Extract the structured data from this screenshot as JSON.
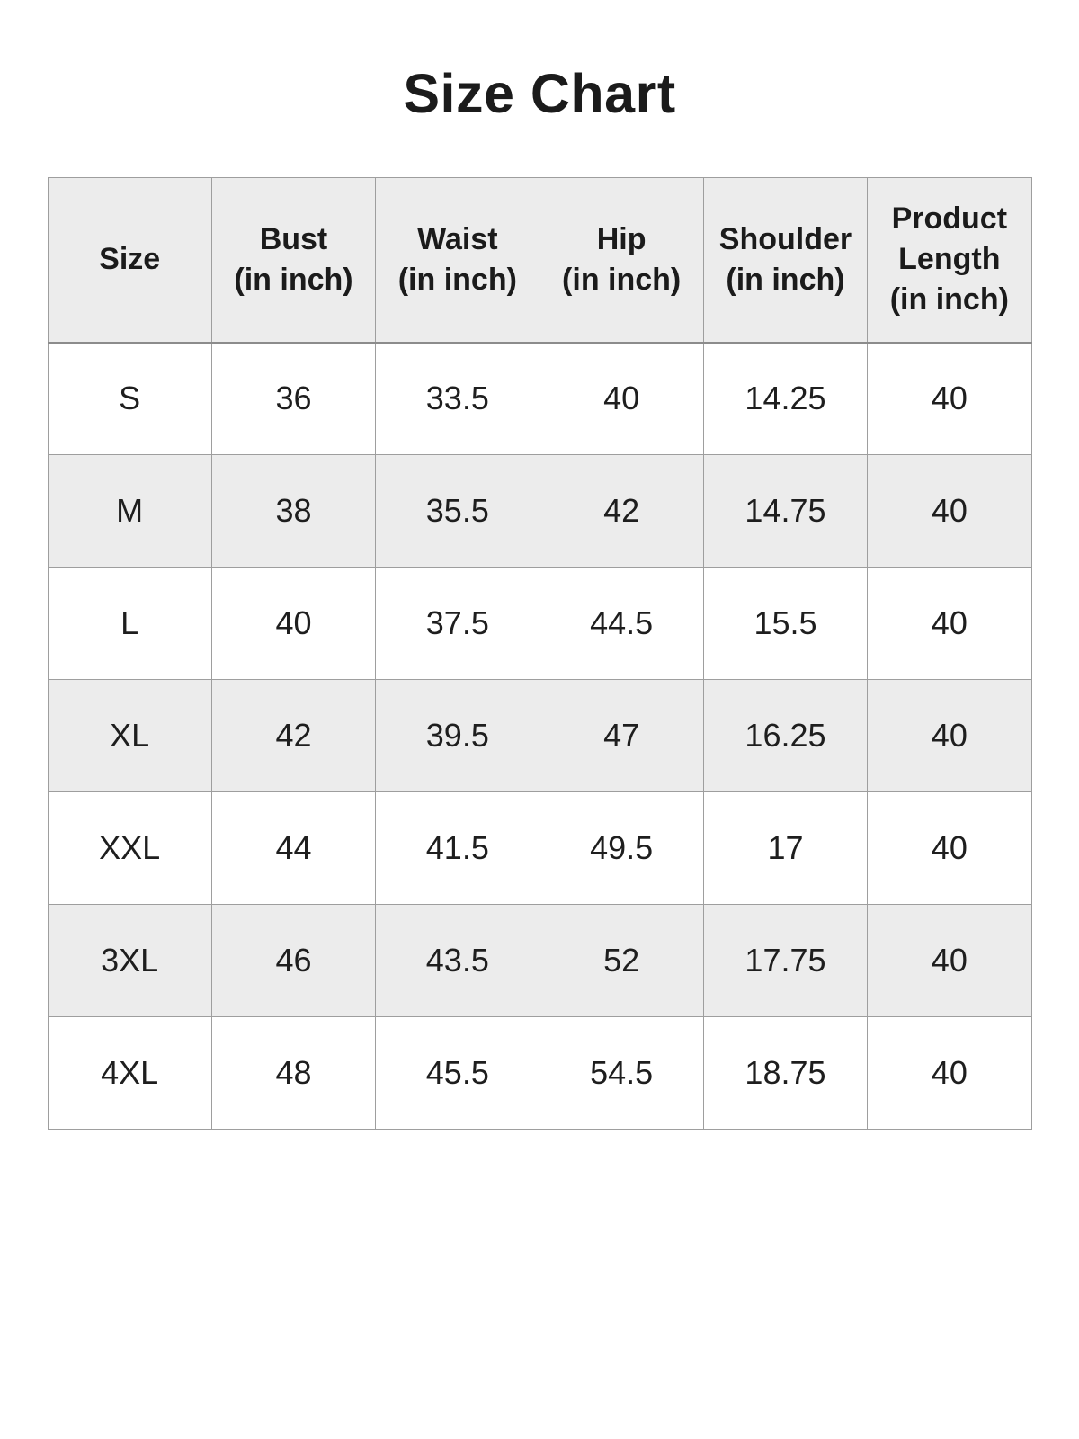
{
  "title": "Size Chart",
  "table": {
    "headers": [
      {
        "label": "Size"
      },
      {
        "label": "Bust\n(in inch)"
      },
      {
        "label": "Waist\n(in inch)"
      },
      {
        "label": "Hip\n(in inch)"
      },
      {
        "label": "Shoulder\n(in inch)"
      },
      {
        "label": "Product\nLength\n(in inch)"
      }
    ],
    "rows": [
      {
        "cells": [
          "S",
          "36",
          "33.5",
          "40",
          "14.25",
          "40"
        ]
      },
      {
        "cells": [
          "M",
          "38",
          "35.5",
          "42",
          "14.75",
          "40"
        ]
      },
      {
        "cells": [
          "L",
          "40",
          "37.5",
          "44.5",
          "15.5",
          "40"
        ]
      },
      {
        "cells": [
          "XL",
          "42",
          "39.5",
          "47",
          "16.25",
          "40"
        ]
      },
      {
        "cells": [
          "XXL",
          "44",
          "41.5",
          "49.5",
          "17",
          "40"
        ]
      },
      {
        "cells": [
          "3XL",
          "46",
          "43.5",
          "52",
          "17.75",
          "40"
        ]
      },
      {
        "cells": [
          "4XL",
          "48",
          "45.5",
          "54.5",
          "18.75",
          "40"
        ]
      }
    ]
  },
  "colors": {
    "page_bg": "#ffffff",
    "row_stripe_bg": "#ececec",
    "header_bg": "#ececec",
    "border": "#9e9e9e",
    "text": "#1e1e1e"
  }
}
